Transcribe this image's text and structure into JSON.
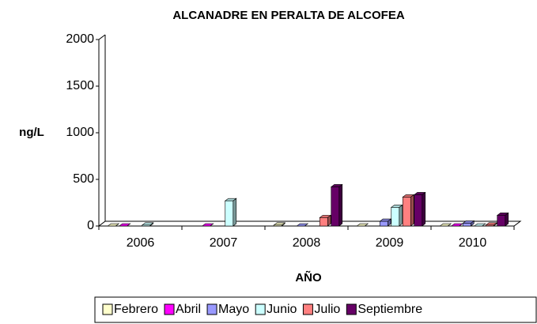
{
  "chart_data": {
    "type": "bar3d",
    "title": "ALCANADRE EN PERALTA DE ALCOFEA",
    "x_label": "AÑO",
    "y_label": "ng/L",
    "categories": [
      "2006",
      "2007",
      "2008",
      "2009",
      "2010"
    ],
    "series": [
      {
        "name": "Febrero",
        "color": "#FFFFCC",
        "values": [
          0,
          null,
          10,
          0,
          0
        ]
      },
      {
        "name": "Abril",
        "color": "#FF00FF",
        "values": [
          0,
          0,
          null,
          null,
          0
        ]
      },
      {
        "name": "Mayo",
        "color": "#9999FF",
        "values": [
          null,
          null,
          0,
          50,
          30
        ]
      },
      {
        "name": "Junio",
        "color": "#CCFFFF",
        "values": [
          10,
          270,
          null,
          200,
          0
        ]
      },
      {
        "name": "Julio",
        "color": "#FF8080",
        "values": [
          null,
          null,
          90,
          310,
          10
        ]
      },
      {
        "name": "Septiembre",
        "color": "#660066",
        "values": [
          null,
          null,
          420,
          335,
          115
        ]
      }
    ],
    "ylim": [
      0,
      2000
    ],
    "yticks": [
      0,
      500,
      1000,
      1500,
      2000
    ],
    "legend": "bottom"
  }
}
